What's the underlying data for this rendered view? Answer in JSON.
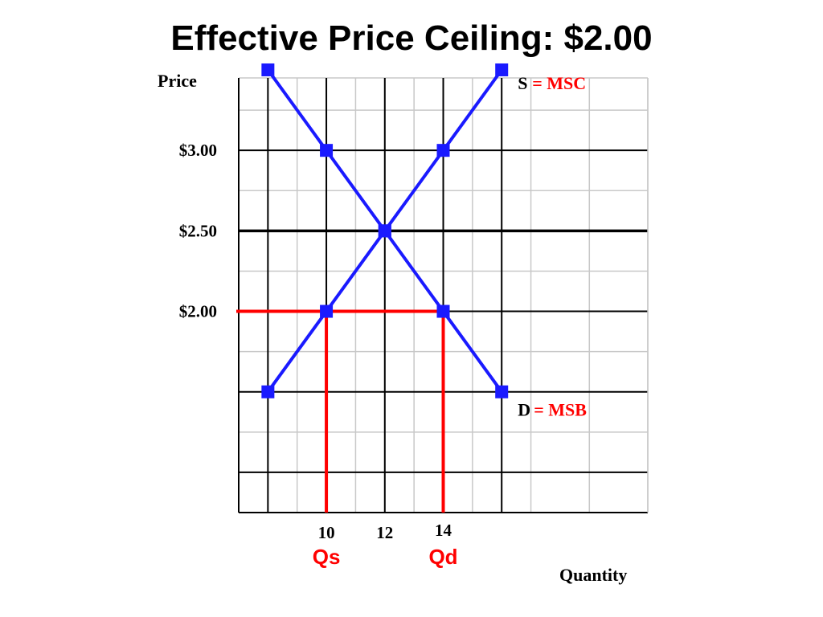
{
  "colors": {
    "curve": "#1a1aff",
    "ceiling": "#ff0000",
    "accent_text": "#ff0000",
    "grid_light": "#c8c8c8",
    "grid_dark": "#000000"
  },
  "chart_data": {
    "type": "line",
    "title": "Effective Price Ceiling: $2.00",
    "ylabel": "Price",
    "xlabel": "Quantity",
    "xlim": [
      7,
      21
    ],
    "ylim": [
      0.75,
      3.45
    ],
    "x_ticks": [
      {
        "value": 10,
        "label": "10"
      },
      {
        "value": 12,
        "label": "12"
      },
      {
        "value": 14,
        "label": "14"
      }
    ],
    "x_sub_labels": [
      {
        "value": 10,
        "label": "Qs"
      },
      {
        "value": 14,
        "label": "Qd"
      }
    ],
    "y_ticks": [
      {
        "value": 3.0,
        "label": "$3.00"
      },
      {
        "value": 2.5,
        "label": "$2.50"
      },
      {
        "value": 2.0,
        "label": "$2.00"
      }
    ],
    "grid_minor_x": [
      7,
      9,
      11,
      13,
      15,
      17,
      19,
      21
    ],
    "grid_major_x": [
      8,
      10,
      12,
      14,
      16
    ],
    "grid_minor_y": [
      1.25,
      1.75,
      2.25,
      2.75,
      3.25,
      3.45
    ],
    "grid_major_y": [
      0.75,
      1.0,
      1.5,
      2.0,
      2.5,
      3.0
    ],
    "series": [
      {
        "name": "S",
        "tag_left": "S",
        "tag_right": "= MSC",
        "x": [
          8,
          10,
          12,
          14,
          16
        ],
        "y": [
          1.5,
          2.0,
          2.5,
          3.0,
          3.5
        ]
      },
      {
        "name": "D",
        "tag_left": "D",
        "tag_right": "= MSB",
        "x": [
          8,
          10,
          12,
          14,
          16
        ],
        "y": [
          3.5,
          3.0,
          2.5,
          2.0,
          1.5
        ]
      }
    ],
    "price_ceiling": {
      "price": 2.0,
      "quantity_supplied": 10,
      "quantity_demanded": 14
    },
    "grid": true
  }
}
